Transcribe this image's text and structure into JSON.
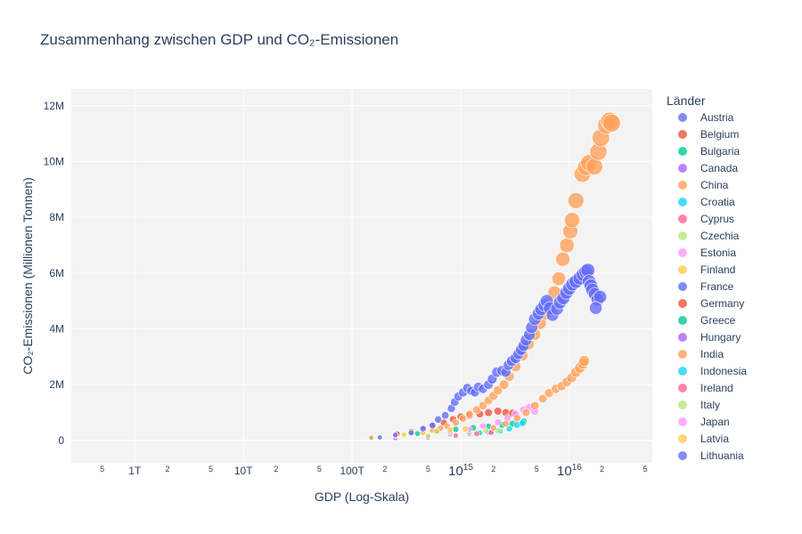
{
  "chart_data": {
    "type": "scatter",
    "title": "Zusammenhang zwischen GDP und CO₂-Emissionen",
    "xlabel": "GDP (Log-Skala)",
    "ylabel": "CO₂-Emissionen (Millionen Tonnen)",
    "xscale": "log",
    "xlim": [
      260000000000.0,
      5.8e+16
    ],
    "ylim": [
      -800000,
      12600000
    ],
    "grid": true,
    "legend": {
      "title": "Länder",
      "placement": "right"
    },
    "x_ticks": [
      {
        "value": 500000000000.0,
        "label": "5",
        "minor": true
      },
      {
        "value": 1000000000000.0,
        "label": "1T",
        "minor": false
      },
      {
        "value": 2000000000000.0,
        "label": "2",
        "minor": true
      },
      {
        "value": 5000000000000.0,
        "label": "5",
        "minor": true
      },
      {
        "value": 10000000000000.0,
        "label": "10T",
        "minor": false
      },
      {
        "value": 20000000000000.0,
        "label": "2",
        "minor": true
      },
      {
        "value": 50000000000000.0,
        "label": "5",
        "minor": true
      },
      {
        "value": 100000000000000.0,
        "label": "100T",
        "minor": false
      },
      {
        "value": 200000000000000.0,
        "label": "2",
        "minor": true
      },
      {
        "value": 500000000000000.0,
        "label": "5",
        "minor": true
      },
      {
        "value": 1000000000000000.0,
        "label": "10",
        "sup": "15",
        "minor": false
      },
      {
        "value": 2000000000000000.0,
        "label": "2",
        "minor": true
      },
      {
        "value": 5000000000000000.0,
        "label": "5",
        "minor": true
      },
      {
        "value": 1e+16,
        "label": "10",
        "sup": "16",
        "minor": false
      },
      {
        "value": 2e+16,
        "label": "2",
        "minor": true
      },
      {
        "value": 5e+16,
        "label": "5",
        "minor": true
      }
    ],
    "y_ticks": [
      {
        "value": 0,
        "label": "0"
      },
      {
        "value": 2000000,
        "label": "2M"
      },
      {
        "value": 4000000,
        "label": "4M"
      },
      {
        "value": 6000000,
        "label": "6M"
      },
      {
        "value": 8000000,
        "label": "8M"
      },
      {
        "value": 10000000,
        "label": "10M"
      },
      {
        "value": 12000000,
        "label": "12M"
      }
    ],
    "series": [
      {
        "name": "Austria",
        "color": "#636efa",
        "points": []
      },
      {
        "name": "Belgium",
        "color": "#EF553B",
        "points": [
          [
            260000000000000.0,
            240000
          ],
          [
            350000000000000.0,
            320000
          ],
          [
            450000000000000.0,
            420000
          ],
          [
            550000000000000.0,
            520000
          ],
          [
            700000000000000.0,
            640000
          ],
          [
            850000000000000.0,
            760000
          ],
          [
            1000000000000000.0,
            850000
          ],
          [
            1200000000000000.0,
            900000
          ],
          [
            1500000000000000.0,
            950000
          ],
          [
            1800000000000000.0,
            1000000
          ],
          [
            2200000000000000.0,
            1050000
          ],
          [
            2600000000000000.0,
            1000000
          ],
          [
            3000000000000000.0,
            980000
          ]
        ]
      },
      {
        "name": "Bulgaria",
        "color": "#00cc96",
        "points": [
          [
            150000000000000.0,
            90000
          ],
          [
            250000000000000.0,
            160000
          ],
          [
            400000000000000.0,
            250000
          ],
          [
            600000000000000.0,
            330000
          ],
          [
            900000000000000.0,
            400000
          ],
          [
            1300000000000000.0,
            450000
          ],
          [
            1800000000000000.0,
            500000
          ],
          [
            2400000000000000.0,
            560000
          ],
          [
            3000000000000000.0,
            600000
          ],
          [
            3800000000000000.0,
            680000
          ]
        ]
      },
      {
        "name": "Canada",
        "color": "#ab63fa",
        "points": [
          [
            250000000000000.0,
            80000
          ],
          [
            500000000000000.0,
            150000
          ],
          [
            800000000000000.0,
            200000
          ],
          [
            1200000000000000.0,
            250000
          ],
          [
            1800000000000000.0,
            300000
          ]
        ]
      },
      {
        "name": "China",
        "color": "#FFA15A",
        "points": [
          [
            150000000000000.0,
            100000
          ],
          [
            250000000000000.0,
            170000
          ],
          [
            350000000000000.0,
            250000
          ],
          [
            450000000000000.0,
            300000
          ],
          [
            550000000000000.0,
            370000
          ],
          [
            650000000000000.0,
            440000
          ],
          [
            750000000000000.0,
            510000
          ],
          [
            900000000000000.0,
            640000
          ],
          [
            1050000000000000.0,
            790000
          ],
          [
            1200000000000000.0,
            950000
          ],
          [
            1400000000000000.0,
            1100000
          ],
          [
            1600000000000000.0,
            1250000
          ],
          [
            1800000000000000.0,
            1430000
          ],
          [
            2000000000000000.0,
            1600000
          ],
          [
            2200000000000000.0,
            1800000
          ],
          [
            2500000000000000.0,
            2000000
          ],
          [
            2800000000000000.0,
            2300000
          ],
          [
            3200000000000000.0,
            2650000
          ],
          [
            3700000000000000.0,
            3050000
          ],
          [
            4200000000000000.0,
            3450000
          ],
          [
            4800000000000000.0,
            3800000
          ],
          [
            5400000000000000.0,
            4200000
          ],
          [
            6000000000000000.0,
            4550000
          ],
          [
            6600000000000000.0,
            4950000
          ],
          [
            7300000000000000.0,
            5300000
          ],
          [
            8000000000000000.0,
            5800000
          ],
          [
            8700000000000000.0,
            6500000
          ],
          [
            9500000000000000.0,
            7000000
          ],
          [
            1.02e+16,
            7500000
          ],
          [
            1.06e+16,
            7900000
          ],
          [
            1.15e+16,
            8600000
          ],
          [
            1.32e+16,
            9550000
          ],
          [
            1.42e+16,
            9800000
          ],
          [
            1.52e+16,
            9950000
          ],
          [
            1.7e+16,
            9820000
          ],
          [
            1.85e+16,
            10350000
          ],
          [
            1.95e+16,
            10850000
          ],
          [
            2.2e+16,
            11300000
          ],
          [
            2.35e+16,
            11450000
          ],
          [
            2.45e+16,
            11380000
          ]
        ]
      },
      {
        "name": "Croatia",
        "color": "#19d3f3",
        "points": [
          [
            1500000000000000.0,
            270000
          ],
          [
            1900000000000000.0,
            300000
          ],
          [
            2300000000000000.0,
            330000
          ],
          [
            2800000000000000.0,
            420000
          ],
          [
            3300000000000000.0,
            560000
          ],
          [
            3700000000000000.0,
            620000
          ]
        ]
      },
      {
        "name": "Cyprus",
        "color": "#FF6692",
        "points": [
          [
            500000000000000.0,
            100000
          ],
          [
            900000000000000.0,
            180000
          ],
          [
            1400000000000000.0,
            240000
          ],
          [
            1900000000000000.0,
            290000
          ]
        ]
      },
      {
        "name": "Czechia",
        "color": "#B6E880",
        "points": [
          [
            500000000000000.0,
            160000
          ],
          [
            800000000000000.0,
            220000
          ],
          [
            1200000000000000.0,
            300000
          ],
          [
            1700000000000000.0,
            350000
          ],
          [
            2200000000000000.0,
            360000
          ]
        ]
      },
      {
        "name": "Estonia",
        "color": "#FF97FF",
        "points": [
          [
            800000000000000.0,
            300000
          ],
          [
            1200000000000000.0,
            400000
          ],
          [
            1600000000000000.0,
            520000
          ],
          [
            2200000000000000.0,
            650000
          ],
          [
            2700000000000000.0,
            800000
          ],
          [
            3200000000000000.0,
            950000
          ],
          [
            3800000000000000.0,
            1100000
          ],
          [
            4300000000000000.0,
            1180000
          ],
          [
            4800000000000000.0,
            1050000
          ]
        ]
      },
      {
        "name": "Finland",
        "color": "#FECB52",
        "points": [
          [
            300000000000000.0,
            210000
          ],
          [
            450000000000000.0,
            280000
          ],
          [
            600000000000000.0,
            330000
          ],
          [
            800000000000000.0,
            380000
          ],
          [
            1100000000000000.0,
            410000
          ]
        ]
      },
      {
        "name": "France",
        "color": "#636efa",
        "points": [
          [
            180000000000000.0,
            110000
          ],
          [
            250000000000000.0,
            200000
          ],
          [
            350000000000000.0,
            280000
          ],
          [
            450000000000000.0,
            420000
          ],
          [
            550000000000000.0,
            540000
          ],
          [
            620000000000000.0,
            750000
          ],
          [
            720000000000000.0,
            900000
          ],
          [
            820000000000000.0,
            1150000
          ],
          [
            880000000000000.0,
            1380000
          ],
          [
            950000000000000.0,
            1580000
          ],
          [
            1050000000000000.0,
            1720000
          ],
          [
            1150000000000000.0,
            1880000
          ],
          [
            1250000000000000.0,
            1780000
          ],
          [
            1350000000000000.0,
            1720000
          ],
          [
            1450000000000000.0,
            1920000
          ],
          [
            1600000000000000.0,
            1850000
          ],
          [
            1800000000000000.0,
            2000000
          ],
          [
            1950000000000000.0,
            2200000
          ],
          [
            2150000000000000.0,
            2450000
          ],
          [
            2400000000000000.0,
            2500000
          ],
          [
            2600000000000000.0,
            2450000
          ],
          [
            2750000000000000.0,
            2700000
          ],
          [
            2950000000000000.0,
            2850000
          ],
          [
            3200000000000000.0,
            2950000
          ],
          [
            3400000000000000.0,
            3100000
          ],
          [
            3600000000000000.0,
            3250000
          ],
          [
            3800000000000000.0,
            3400000
          ],
          [
            4000000000000000.0,
            3600000
          ],
          [
            4300000000000000.0,
            3800000
          ],
          [
            4500000000000000.0,
            4050000
          ],
          [
            4800000000000000.0,
            4350000
          ],
          [
            5200000000000000.0,
            4550000
          ],
          [
            5500000000000000.0,
            4700000
          ],
          [
            5900000000000000.0,
            4850000
          ],
          [
            6200000000000000.0,
            5000000
          ],
          [
            6600000000000000.0,
            4750000
          ],
          [
            7000000000000000.0,
            4500000
          ],
          [
            7700000000000000.0,
            4720000
          ],
          [
            8200000000000000.0,
            4950000
          ],
          [
            8800000000000000.0,
            5100000
          ],
          [
            9400000000000000.0,
            5300000
          ],
          [
            1e+16,
            5450000
          ],
          [
            1.07e+16,
            5600000
          ],
          [
            1.15e+16,
            5700000
          ],
          [
            1.25e+16,
            5820000
          ],
          [
            1.34e+16,
            5950000
          ],
          [
            1.42e+16,
            6050000
          ],
          [
            1.48e+16,
            6100000
          ],
          [
            1.52e+16,
            5700000
          ],
          [
            1.58e+16,
            5550000
          ],
          [
            1.63e+16,
            5400000
          ],
          [
            1.72e+16,
            5250000
          ],
          [
            1.82e+16,
            5050000
          ],
          [
            1.92e+16,
            5150000
          ],
          [
            1.75e+16,
            4750000
          ]
        ]
      },
      {
        "name": "Germany",
        "color": "#EF553B",
        "points": []
      },
      {
        "name": "Greece",
        "color": "#00cc96",
        "points": []
      },
      {
        "name": "Hungary",
        "color": "#ab63fa",
        "points": []
      },
      {
        "name": "India",
        "color": "#FFA15A",
        "points": [
          [
            2000000000000000.0,
            450000
          ],
          [
            2600000000000000.0,
            600000
          ],
          [
            3300000000000000.0,
            800000
          ],
          [
            4000000000000000.0,
            1000000
          ],
          [
            4800000000000000.0,
            1250000
          ],
          [
            5700000000000000.0,
            1500000
          ],
          [
            6500000000000000.0,
            1700000
          ],
          [
            7500000000000000.0,
            1850000
          ],
          [
            8500000000000000.0,
            1950000
          ],
          [
            9500000000000000.0,
            2100000
          ],
          [
            1.05e+16,
            2250000
          ],
          [
            1.15e+16,
            2450000
          ],
          [
            1.25e+16,
            2600000
          ],
          [
            1.33e+16,
            2750000
          ],
          [
            1.37e+16,
            2850000
          ]
        ]
      },
      {
        "name": "Indonesia",
        "color": "#19d3f3",
        "points": []
      },
      {
        "name": "Ireland",
        "color": "#FF6692",
        "points": []
      },
      {
        "name": "Italy",
        "color": "#B6E880",
        "points": []
      },
      {
        "name": "Japan",
        "color": "#FF97FF",
        "points": []
      },
      {
        "name": "Latvia",
        "color": "#FECB52",
        "points": []
      },
      {
        "name": "Lithuania",
        "color": "#636efa",
        "points": []
      }
    ]
  }
}
